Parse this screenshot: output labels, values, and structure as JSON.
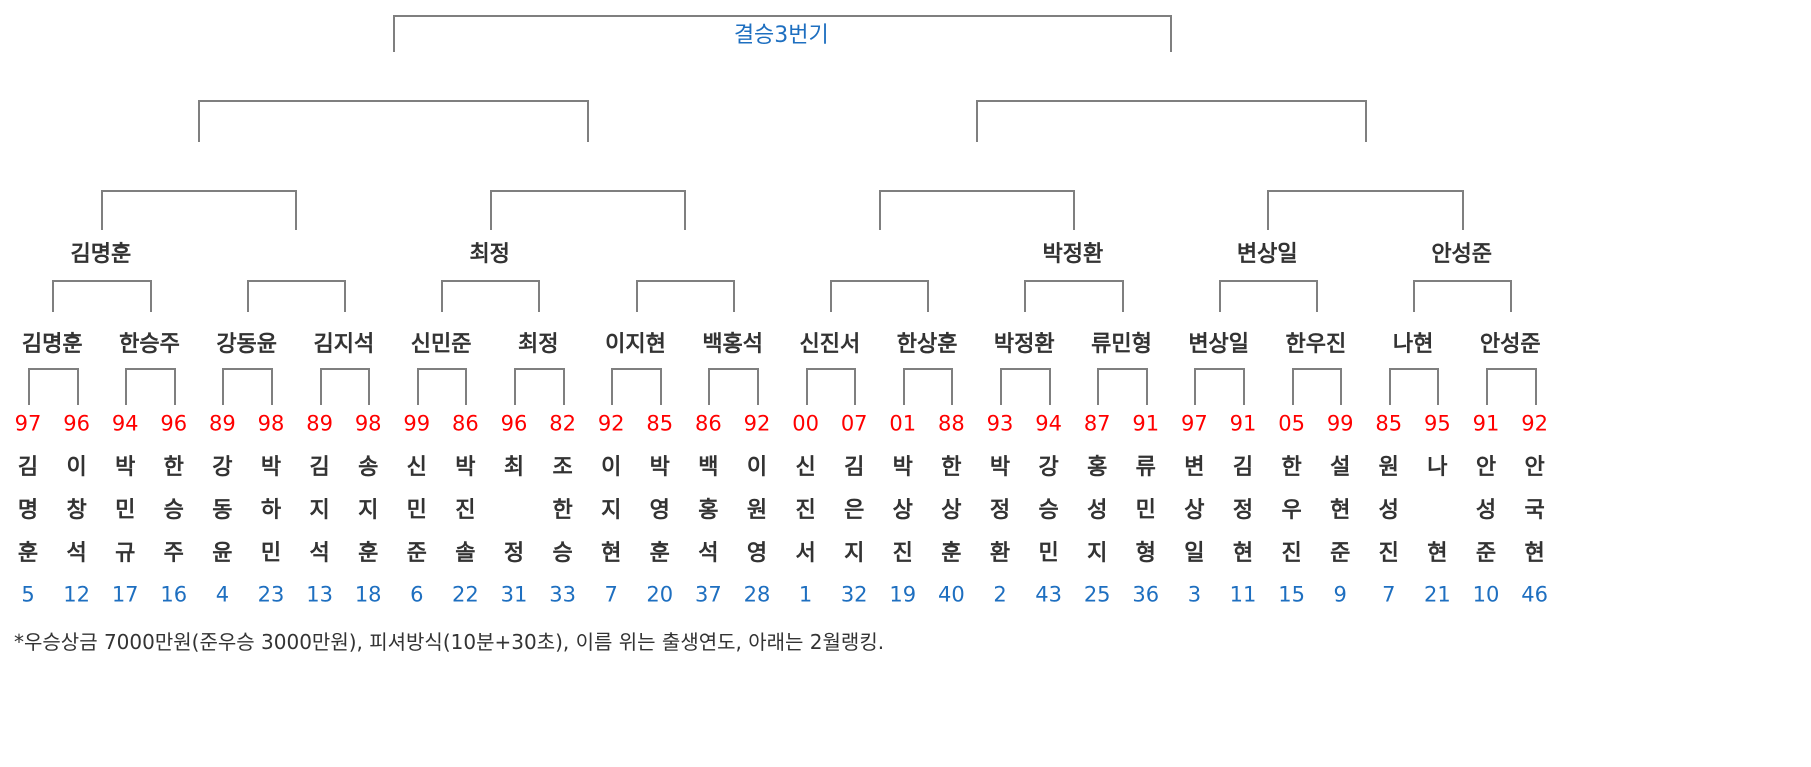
{
  "title": "결승3번기",
  "colors": {
    "line": "#7f7f7f",
    "birth_year": "#ff0000",
    "ranking": "#1e6fc0",
    "title": "#1e6fc0",
    "name": "#333333"
  },
  "players": [
    {
      "name": "김명훈",
      "year": "97",
      "rank": "5"
    },
    {
      "name": "이창석",
      "year": "96",
      "rank": "12"
    },
    {
      "name": "박민규",
      "year": "94",
      "rank": "17"
    },
    {
      "name": "한승주",
      "year": "96",
      "rank": "16"
    },
    {
      "name": "강동윤",
      "year": "89",
      "rank": "4"
    },
    {
      "name": "박하민",
      "year": "98",
      "rank": "23"
    },
    {
      "name": "김지석",
      "year": "89",
      "rank": "13"
    },
    {
      "name": "송지훈",
      "year": "98",
      "rank": "18"
    },
    {
      "name": "신민준",
      "year": "99",
      "rank": "6"
    },
    {
      "name": "박진솔",
      "year": "86",
      "rank": "22"
    },
    {
      "name": "최 정",
      "year": "96",
      "rank": "31"
    },
    {
      "name": "조한승",
      "year": "82",
      "rank": "33"
    },
    {
      "name": "이지현",
      "year": "92",
      "rank": "7"
    },
    {
      "name": "박영훈",
      "year": "85",
      "rank": "20"
    },
    {
      "name": "백홍석",
      "year": "86",
      "rank": "37"
    },
    {
      "name": "이원영",
      "year": "92",
      "rank": "28"
    },
    {
      "name": "신진서",
      "year": "00",
      "rank": "1"
    },
    {
      "name": "김은지",
      "year": "07",
      "rank": "32"
    },
    {
      "name": "박상진",
      "year": "01",
      "rank": "19"
    },
    {
      "name": "한상훈",
      "year": "88",
      "rank": "40"
    },
    {
      "name": "박정환",
      "year": "93",
      "rank": "2"
    },
    {
      "name": "강승민",
      "year": "94",
      "rank": "43"
    },
    {
      "name": "홍성지",
      "year": "87",
      "rank": "25"
    },
    {
      "name": "류민형",
      "year": "91",
      "rank": "36"
    },
    {
      "name": "변상일",
      "year": "97",
      "rank": "3"
    },
    {
      "name": "김정현",
      "year": "91",
      "rank": "11"
    },
    {
      "name": "한우진",
      "year": "05",
      "rank": "15"
    },
    {
      "name": "설현준",
      "year": "99",
      "rank": "9"
    },
    {
      "name": "원성진",
      "year": "85",
      "rank": "7"
    },
    {
      "name": "나 현",
      "year": "95",
      "rank": "21"
    },
    {
      "name": "안성준",
      "year": "91",
      "rank": "10"
    },
    {
      "name": "안국현",
      "year": "92",
      "rank": "46"
    }
  ],
  "round32_winners": [
    "김명훈",
    "한승주",
    "강동윤",
    "김지석",
    "신민준",
    "최정",
    "이지현",
    "백홍석",
    "신진서",
    "한상훈",
    "박정환",
    "류민형",
    "변상일",
    "한우진",
    "나현",
    "안성준"
  ],
  "round16_winners": [
    "김명훈",
    "",
    "최정",
    "",
    "",
    "박정환",
    "변상일",
    "안성준"
  ],
  "footnote": "*우승상금 7000만원(준우승 3000만원), 피셔방식(10분+30초), 이름 위는 출생연도, 아래는 2월랭킹."
}
